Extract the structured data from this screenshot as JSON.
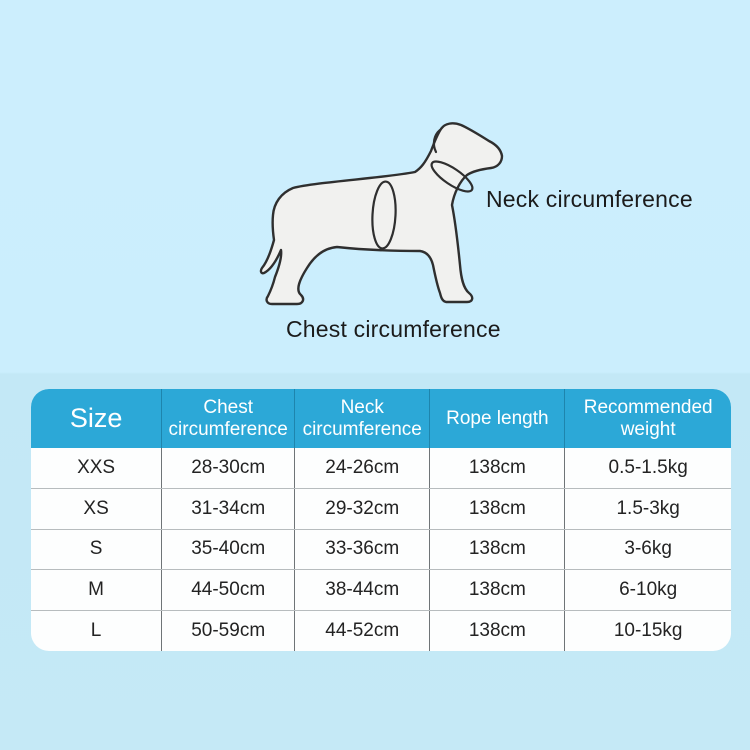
{
  "page": {
    "background_top": "#cbeefd",
    "background_bottom": "#c5e9f6"
  },
  "diagram": {
    "neck_label": "Neck circumference",
    "chest_label": "Chest circumference",
    "dog_fill": "#f1f1ef",
    "dog_outline": "#2f2f2f"
  },
  "table": {
    "header_bg": "#2ca8d7",
    "header_text_color": "#ffffff",
    "grid_line_color": "#6f7477",
    "row_line_color": "#b7bcbe",
    "columns": [
      "Size",
      "Chest circumference",
      "Neck circumference",
      "Rope length",
      "Recommended weight"
    ],
    "rows": [
      {
        "size": "XXS",
        "chest": "28-30cm",
        "neck": "24-26cm",
        "rope": "138cm",
        "weight": "0.5-1.5kg"
      },
      {
        "size": "XS",
        "chest": "31-34cm",
        "neck": "29-32cm",
        "rope": "138cm",
        "weight": "1.5-3kg"
      },
      {
        "size": "S",
        "chest": "35-40cm",
        "neck": "33-36cm",
        "rope": "138cm",
        "weight": "3-6kg"
      },
      {
        "size": "M",
        "chest": "44-50cm",
        "neck": "38-44cm",
        "rope": "138cm",
        "weight": "6-10kg"
      },
      {
        "size": "L",
        "chest": "50-59cm",
        "neck": "44-52cm",
        "rope": "138cm",
        "weight": "10-15kg"
      }
    ]
  }
}
